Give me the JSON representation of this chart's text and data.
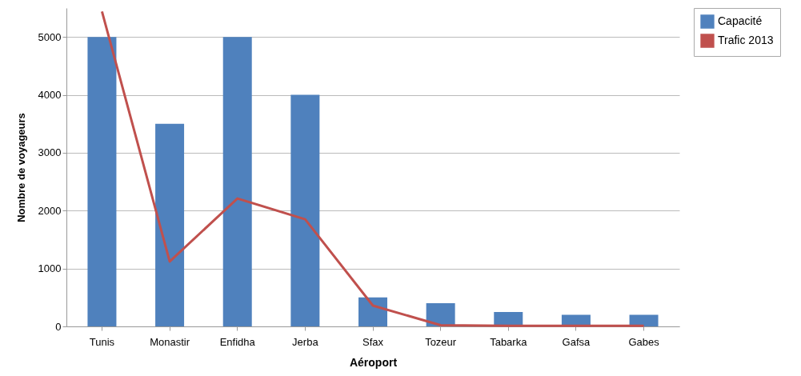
{
  "chart_data": {
    "type": "bar",
    "xlabel": "Aéroport",
    "ylabel": "Nombre de voyageurs",
    "categories": [
      "Tunis",
      "Monastir",
      "Enfidha",
      "Jerba",
      "Sfax",
      "Tozeur",
      "Tabarka",
      "Gafsa",
      "Gabes"
    ],
    "series": [
      {
        "name": "Capacité",
        "color": "#4f81bd",
        "values": [
          5000,
          3500,
          5000,
          4000,
          500,
          400,
          250,
          200,
          200
        ]
      },
      {
        "name": "Trafic 2013",
        "type": "line",
        "color": "#c0504d",
        "values": [
          5440,
          1120,
          2210,
          1850,
          360,
          20,
          10,
          10,
          10
        ]
      }
    ],
    "ylim": [
      0,
      5500
    ],
    "yticks": [
      0,
      1000,
      2000,
      3000,
      4000,
      5000
    ],
    "grid": "y",
    "legend": "right"
  }
}
